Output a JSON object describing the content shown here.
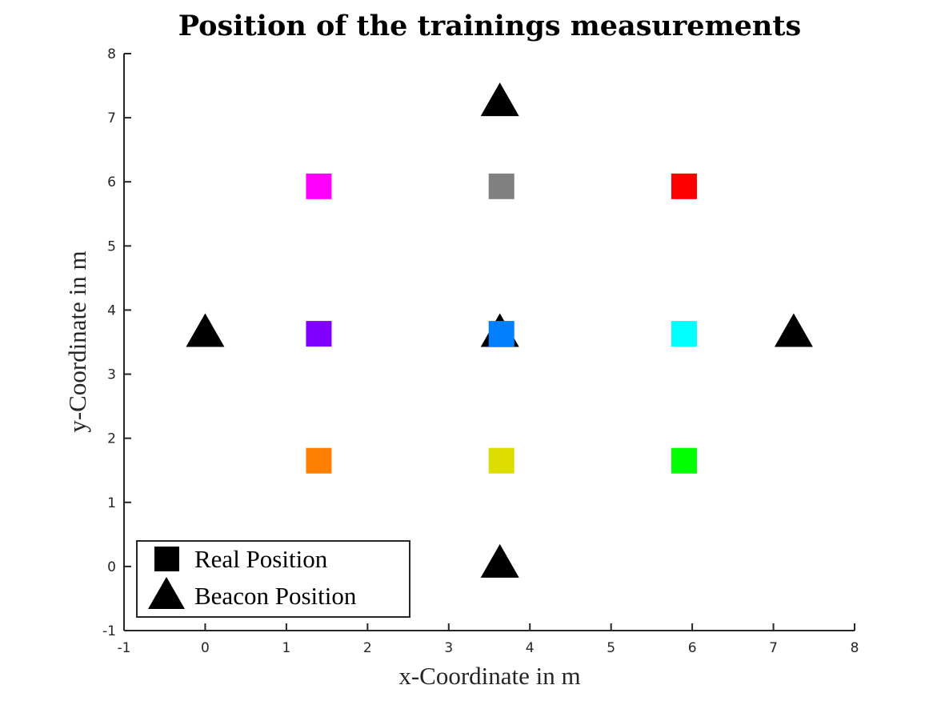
{
  "chart_data": {
    "type": "scatter",
    "title": "Position of the trainings measurements",
    "xlabel": "x-Coordinate in m",
    "ylabel": "y-Coordinate in m",
    "xlim": [
      -1,
      8
    ],
    "ylim": [
      -1,
      8
    ],
    "xticks": [
      -1,
      0,
      1,
      2,
      3,
      4,
      5,
      6,
      7,
      8
    ],
    "yticks": [
      -1,
      0,
      1,
      2,
      3,
      4,
      5,
      6,
      7,
      8
    ],
    "grid": false,
    "legend_position": "bottom-left",
    "series": [
      {
        "name": "Real Position",
        "marker": "square",
        "points": [
          {
            "x": 1.4,
            "y": 5.93,
            "color": "#ff00ff"
          },
          {
            "x": 3.65,
            "y": 5.93,
            "color": "#808080"
          },
          {
            "x": 5.9,
            "y": 5.93,
            "color": "#ff0000"
          },
          {
            "x": 1.4,
            "y": 3.63,
            "color": "#8000ff"
          },
          {
            "x": 3.65,
            "y": 3.63,
            "color": "#0080ff"
          },
          {
            "x": 5.9,
            "y": 3.63,
            "color": "#00ffff"
          },
          {
            "x": 1.4,
            "y": 1.65,
            "color": "#ff8000"
          },
          {
            "x": 3.65,
            "y": 1.65,
            "color": "#dddd00"
          },
          {
            "x": 5.9,
            "y": 1.65,
            "color": "#00ff00"
          }
        ]
      },
      {
        "name": "Beacon Position",
        "marker": "triangle",
        "color": "#000000",
        "points": [
          {
            "x": 3.63,
            "y": 7.25
          },
          {
            "x": 0.0,
            "y": 3.65
          },
          {
            "x": 3.63,
            "y": 3.65
          },
          {
            "x": 7.25,
            "y": 3.65
          },
          {
            "x": 3.63,
            "y": 0.05
          }
        ]
      }
    ]
  }
}
